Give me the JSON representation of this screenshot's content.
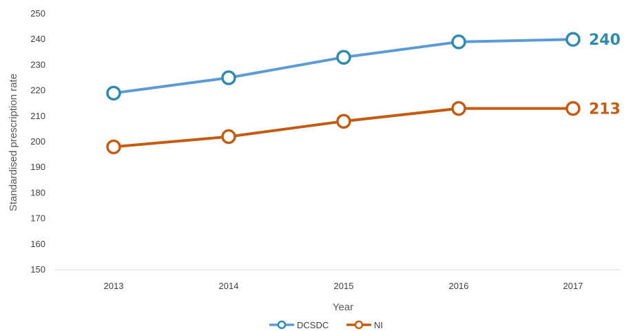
{
  "chart_data": {
    "type": "line",
    "categories": [
      "2013",
      "2014",
      "2015",
      "2016",
      "2017"
    ],
    "series": [
      {
        "name": "DCSDC",
        "values": [
          219,
          225,
          233,
          239,
          240
        ],
        "color": "#5b9bd5",
        "marker_color": "#2e8bb0",
        "end_label": "240"
      },
      {
        "name": "NI",
        "values": [
          198,
          202,
          208,
          213,
          213
        ],
        "color": "#c55a11",
        "marker_color": "#c55a11",
        "end_label": "213"
      }
    ],
    "xlabel": "Year",
    "ylabel": "Standardised prescription rate",
    "ylim": [
      150,
      250
    ],
    "yticks": [
      "150",
      "160",
      "170",
      "180",
      "190",
      "200",
      "210",
      "220",
      "230",
      "240",
      "250"
    ],
    "grid": false,
    "legend": "bottom",
    "marker": "hollow-circle"
  }
}
